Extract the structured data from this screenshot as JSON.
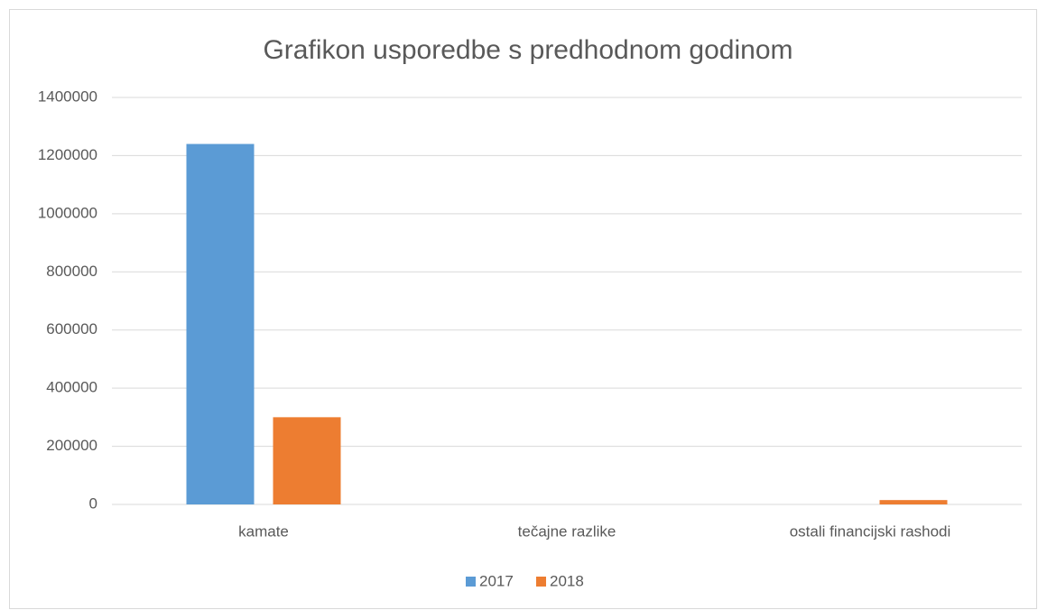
{
  "chart_data": {
    "type": "bar",
    "title": "Grafikon usporedbe s predhodnom godinom",
    "categories": [
      "kamate",
      "tečajne razlike",
      "ostali financijski rashodi"
    ],
    "series": [
      {
        "name": "2017",
        "color": "#5b9bd5",
        "values": [
          1240000,
          0,
          0
        ]
      },
      {
        "name": "2018",
        "color": "#ed7d31",
        "values": [
          300000,
          0,
          15000
        ]
      }
    ],
    "ylim": [
      0,
      1400000
    ],
    "yticks": [
      0,
      200000,
      400000,
      600000,
      800000,
      1000000,
      1200000,
      1400000
    ],
    "grid": true,
    "legend": "bottom"
  }
}
